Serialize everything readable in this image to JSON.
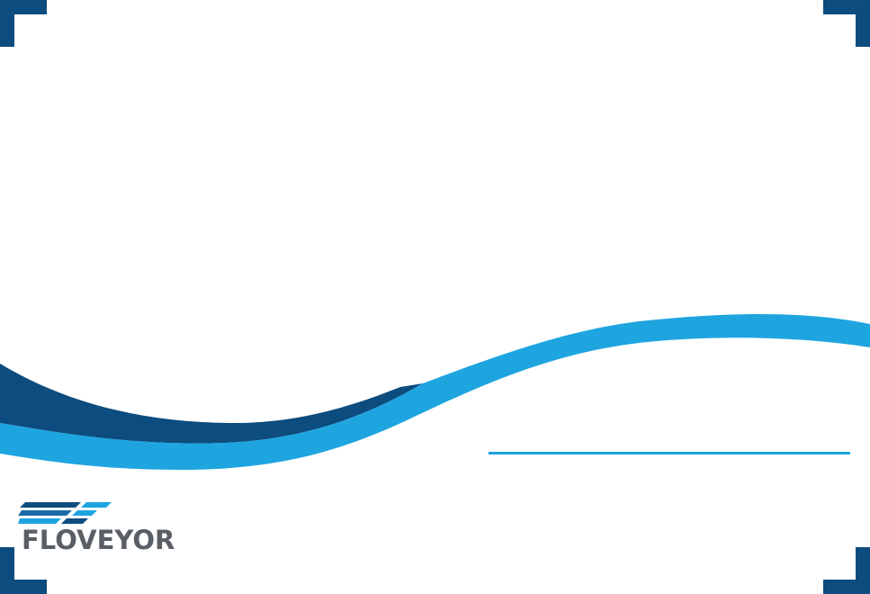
{
  "brand": {
    "name": "FLOVEYOR",
    "icon": "floveyor-logo-icon"
  },
  "colors": {
    "navy": "#0d4c7e",
    "sky_blue": "#1ea5e0",
    "logo_text": "#5a5f66",
    "background": "#ffffff"
  },
  "decor": {
    "corner_icon": "corner-bracket-icon",
    "wave_icon": "wave-icon"
  }
}
